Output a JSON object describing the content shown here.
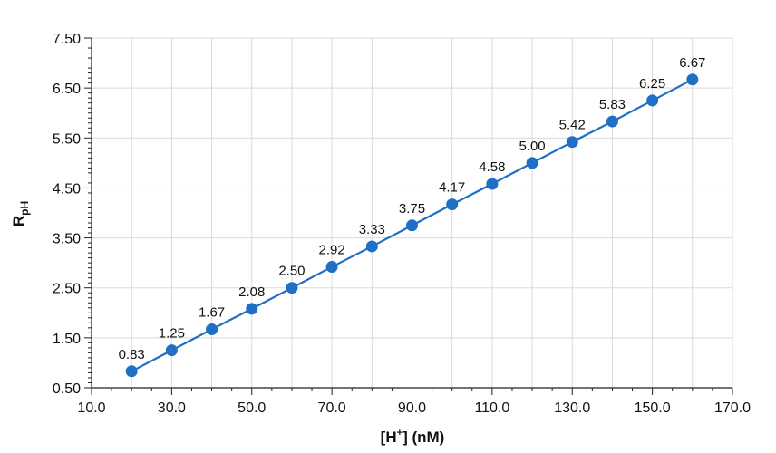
{
  "chart_data": {
    "type": "line",
    "x": [
      20,
      30,
      40,
      50,
      60,
      70,
      80,
      90,
      100,
      110,
      120,
      130,
      140,
      150,
      160
    ],
    "series": [
      {
        "values": [
          0.83,
          1.25,
          1.67,
          2.08,
          2.5,
          2.92,
          3.33,
          3.75,
          4.17,
          4.58,
          5.0,
          5.42,
          5.83,
          6.25,
          6.67
        ],
        "labels": [
          "0.83",
          "1.25",
          "1.67",
          "2.08",
          "2.50",
          "2.92",
          "3.33",
          "3.75",
          "4.17",
          "4.58",
          "5.00",
          "5.42",
          "5.83",
          "6.25",
          "6.67"
        ],
        "color": "#1f6fc6"
      }
    ],
    "xlabel": {
      "main": "[H",
      "sup": "+",
      "rest": "] (nM)"
    },
    "ylabel": {
      "main": "R",
      "sub": "pH"
    },
    "xlim": [
      10,
      170
    ],
    "ylim": [
      0.5,
      7.5
    ],
    "xticks": [
      "10.0",
      "30.0",
      "50.0",
      "70.0",
      "90.0",
      "110.0",
      "130.0",
      "150.0",
      "170.0"
    ],
    "yticks": [
      "0.50",
      "1.50",
      "2.50",
      "3.50",
      "4.50",
      "5.50",
      "6.50",
      "7.50"
    ],
    "grid": true,
    "legend": "none",
    "colors": {
      "line": "#1f6fc6",
      "grid": "#d9d9d9",
      "axis": "#222222"
    }
  }
}
